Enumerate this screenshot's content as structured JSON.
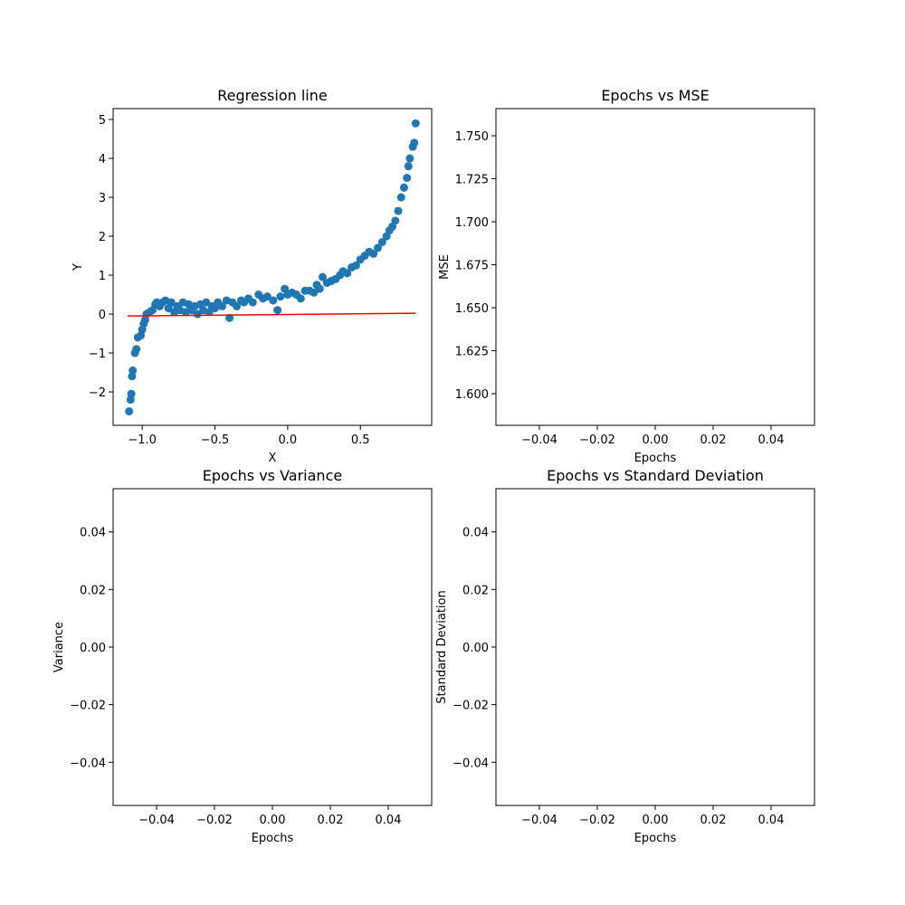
{
  "chart_data": [
    {
      "type": "scatter",
      "title": "Regression line",
      "xlabel": "X",
      "ylabel": "Y",
      "xlim": [
        -1.2,
        0.99
      ],
      "ylim": [
        -2.86,
        5.28
      ],
      "xticks": [
        {
          "value": -1.0,
          "label": "−1.0"
        },
        {
          "value": -0.5,
          "label": "−0.5"
        },
        {
          "value": 0.0,
          "label": "0.0"
        },
        {
          "value": 0.5,
          "label": "0.5"
        }
      ],
      "yticks": [
        {
          "value": -2,
          "label": "−2"
        },
        {
          "value": -1,
          "label": "−1"
        },
        0,
        1,
        2,
        3,
        4,
        5
      ],
      "series": [
        {
          "type": "scatter",
          "color": "#1f77b4",
          "x": [
            -1.09,
            -1.08,
            -1.075,
            -1.07,
            -1.065,
            -1.05,
            -1.04,
            -1.03,
            -1.01,
            -1.0,
            -0.99,
            -0.98,
            -0.97,
            -0.95,
            -0.93,
            -0.91,
            -0.9,
            -0.88,
            -0.86,
            -0.84,
            -0.82,
            -0.8,
            -0.78,
            -0.76,
            -0.74,
            -0.72,
            -0.7,
            -0.68,
            -0.66,
            -0.64,
            -0.62,
            -0.6,
            -0.58,
            -0.56,
            -0.54,
            -0.52,
            -0.5,
            -0.48,
            -0.45,
            -0.42,
            -0.4,
            -0.38,
            -0.35,
            -0.32,
            -0.3,
            -0.27,
            -0.24,
            -0.2,
            -0.17,
            -0.14,
            -0.1,
            -0.07,
            -0.05,
            -0.02,
            0.0,
            0.03,
            0.06,
            0.09,
            0.12,
            0.15,
            0.18,
            0.2,
            0.22,
            0.24,
            0.27,
            0.3,
            0.33,
            0.36,
            0.38,
            0.41,
            0.44,
            0.47,
            0.5,
            0.53,
            0.56,
            0.59,
            0.62,
            0.65,
            0.68,
            0.7,
            0.72,
            0.74,
            0.76,
            0.78,
            0.8,
            0.82,
            0.83,
            0.84,
            0.86,
            0.87,
            0.88
          ],
          "values": [
            -2.5,
            -2.2,
            -2.05,
            -1.6,
            -1.45,
            -1.0,
            -0.9,
            -0.6,
            -0.55,
            -0.4,
            -0.25,
            -0.15,
            0.0,
            0.05,
            0.1,
            0.25,
            0.3,
            0.2,
            0.3,
            0.35,
            0.15,
            0.3,
            0.05,
            0.2,
            0.1,
            0.3,
            0.05,
            0.25,
            0.1,
            0.2,
            0.0,
            0.25,
            0.1,
            0.3,
            0.05,
            0.2,
            0.15,
            0.3,
            0.2,
            0.35,
            -0.1,
            0.3,
            0.2,
            0.35,
            0.3,
            0.4,
            0.3,
            0.5,
            0.4,
            0.45,
            0.35,
            0.1,
            0.45,
            0.65,
            0.5,
            0.55,
            0.5,
            0.4,
            0.6,
            0.6,
            0.55,
            0.75,
            0.65,
            0.95,
            0.8,
            0.85,
            0.9,
            1.0,
            1.1,
            1.05,
            1.2,
            1.25,
            1.4,
            1.5,
            1.6,
            1.55,
            1.7,
            1.85,
            2.0,
            2.15,
            2.25,
            2.4,
            2.65,
            3.0,
            3.25,
            3.5,
            3.8,
            4.0,
            4.3,
            4.4,
            4.9
          ]
        },
        {
          "type": "line",
          "color": "#ff0000",
          "x": [
            -1.1,
            0.88
          ],
          "values": [
            -0.05,
            0.02
          ]
        }
      ]
    },
    {
      "type": "line",
      "title": "Epochs vs MSE",
      "xlabel": "Epochs",
      "ylabel": "MSE",
      "xlim": [
        -0.055,
        0.055
      ],
      "ylim": [
        1.5816,
        1.7658
      ],
      "xticks": [
        {
          "value": -0.04,
          "label": "−0.04"
        },
        {
          "value": -0.02,
          "label": "−0.02"
        },
        {
          "value": 0,
          "label": "0.00"
        },
        0.02,
        0.04
      ],
      "yticks": [
        {
          "value": 1.6,
          "label": "1.600"
        },
        1.625,
        {
          "value": 1.65,
          "label": "1.650"
        },
        1.675,
        {
          "value": 1.7,
          "label": "1.700"
        },
        1.725,
        {
          "value": 1.75,
          "label": "1.750"
        }
      ],
      "series": []
    },
    {
      "type": "line",
      "title": "Epochs vs Variance",
      "xlabel": "Epochs",
      "ylabel": "Variance",
      "xlim": [
        -0.055,
        0.055
      ],
      "ylim": [
        -0.055,
        0.055
      ],
      "xticks": [
        {
          "value": -0.04,
          "label": "−0.04"
        },
        {
          "value": -0.02,
          "label": "−0.02"
        },
        {
          "value": 0,
          "label": "0.00"
        },
        0.02,
        0.04
      ],
      "yticks": [
        {
          "value": -0.04,
          "label": "−0.04"
        },
        {
          "value": -0.02,
          "label": "−0.02"
        },
        {
          "value": 0,
          "label": "0.00"
        },
        0.02,
        0.04
      ],
      "series": []
    },
    {
      "type": "line",
      "title": "Epochs vs Standard Deviation",
      "xlabel": "Epochs",
      "ylabel": "Standard Deviation",
      "xlim": [
        -0.055,
        0.055
      ],
      "ylim": [
        -0.055,
        0.055
      ],
      "xticks": [
        {
          "value": -0.04,
          "label": "−0.04"
        },
        {
          "value": -0.02,
          "label": "−0.02"
        },
        {
          "value": 0,
          "label": "0.00"
        },
        0.02,
        0.04
      ],
      "yticks": [
        {
          "value": -0.04,
          "label": "−0.04"
        },
        {
          "value": -0.02,
          "label": "−0.02"
        },
        {
          "value": 0,
          "label": "0.00"
        },
        0.02,
        0.04
      ],
      "series": []
    }
  ]
}
